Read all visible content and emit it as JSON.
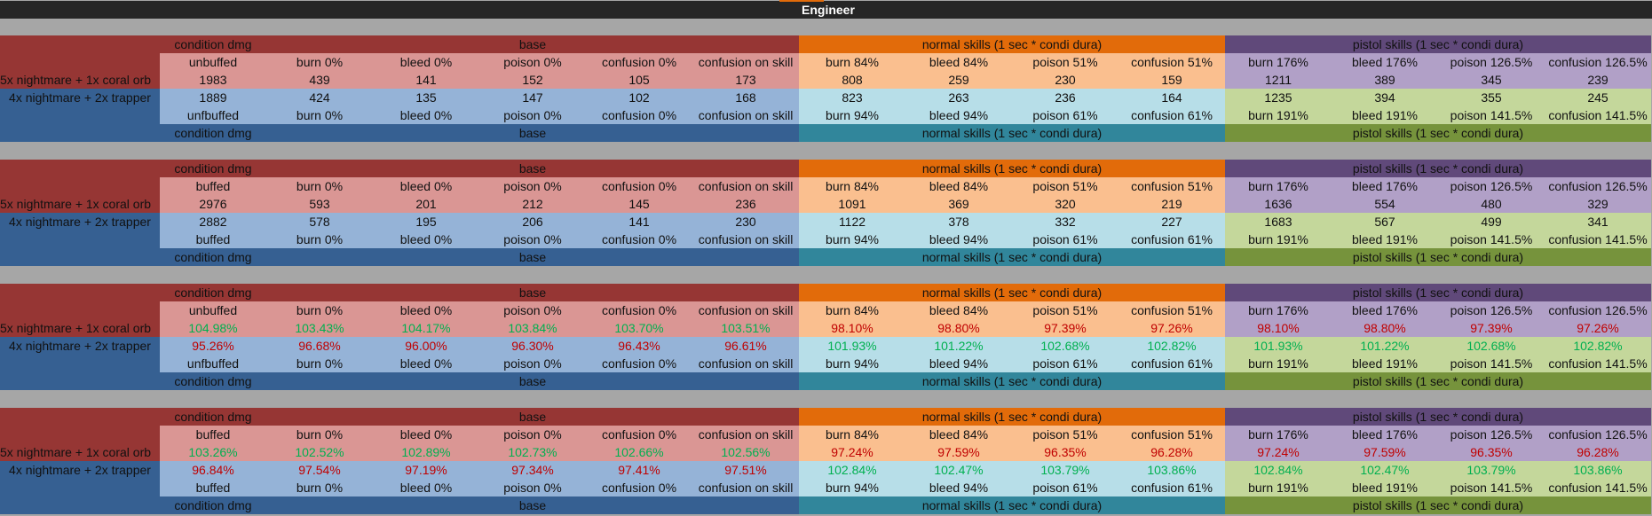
{
  "title": "Engineer",
  "group_headers": [
    "condition dmg",
    "base",
    "normal skills (1 sec * condi dura)",
    "pistol skills (1 sec * condi dura)"
  ],
  "row_labels": [
    "5x nightmare + 1x coral orb",
    "4x nightmare + 2x trapper"
  ],
  "top_headers_tail": [
    "burn 0%",
    "bleed 0%",
    "poison 0%",
    "confusion 0%",
    "confusion on skill",
    "burn 84%",
    "bleed 84%",
    "poison 51%",
    "confusion 51%",
    "burn 176%",
    "bleed 176%",
    "poison 126.5%",
    "confusion 126.5%"
  ],
  "bottom_headers_tail": [
    "burn 0%",
    "bleed 0%",
    "poison 0%",
    "confusion 0%",
    "confusion on skill",
    "burn 94%",
    "bleed 94%",
    "poison 61%",
    "confusion 61%",
    "burn 191%",
    "bleed 191%",
    "poison 141.5%",
    "confusion 141.5%"
  ],
  "blocks": [
    {
      "top_first": "unbuffed",
      "bottom_first": "unfbuffed",
      "is_percent": false,
      "row1": [
        "1983",
        "439",
        "141",
        "152",
        "105",
        "173",
        "808",
        "259",
        "230",
        "159",
        "1211",
        "389",
        "345",
        "239"
      ],
      "row2": [
        "1889",
        "424",
        "135",
        "147",
        "102",
        "168",
        "823",
        "263",
        "236",
        "164",
        "1235",
        "394",
        "355",
        "245"
      ]
    },
    {
      "top_first": "buffed",
      "bottom_first": "buffed",
      "is_percent": false,
      "row1": [
        "2976",
        "593",
        "201",
        "212",
        "145",
        "236",
        "1091",
        "369",
        "320",
        "219",
        "1636",
        "554",
        "480",
        "329"
      ],
      "row2": [
        "2882",
        "578",
        "195",
        "206",
        "141",
        "230",
        "1122",
        "378",
        "332",
        "227",
        "1683",
        "567",
        "499",
        "341"
      ]
    },
    {
      "top_first": "unbuffed",
      "bottom_first": "unfbuffed",
      "is_percent": true,
      "row1": [
        "104.98%",
        "103.43%",
        "104.17%",
        "103.84%",
        "103.70%",
        "103.51%",
        "98.10%",
        "98.80%",
        "97.39%",
        "97.26%",
        "98.10%",
        "98.80%",
        "97.39%",
        "97.26%"
      ],
      "row2": [
        "95.26%",
        "96.68%",
        "96.00%",
        "96.30%",
        "96.43%",
        "96.61%",
        "101.93%",
        "101.22%",
        "102.68%",
        "102.82%",
        "101.93%",
        "101.22%",
        "102.68%",
        "102.82%"
      ]
    },
    {
      "top_first": "buffed",
      "bottom_first": "buffed",
      "is_percent": true,
      "row1": [
        "103.26%",
        "102.52%",
        "102.89%",
        "102.73%",
        "102.66%",
        "102.56%",
        "97.24%",
        "97.59%",
        "96.35%",
        "96.28%",
        "97.24%",
        "97.59%",
        "96.35%",
        "96.28%"
      ],
      "row2": [
        "96.84%",
        "97.54%",
        "97.19%",
        "97.34%",
        "97.41%",
        "97.51%",
        "102.84%",
        "102.47%",
        "103.79%",
        "103.86%",
        "102.84%",
        "102.47%",
        "103.79%",
        "103.86%"
      ]
    }
  ],
  "colors": {
    "positive": "#00b050",
    "negative": "#c00000",
    "accent": "#e26b0a"
  }
}
